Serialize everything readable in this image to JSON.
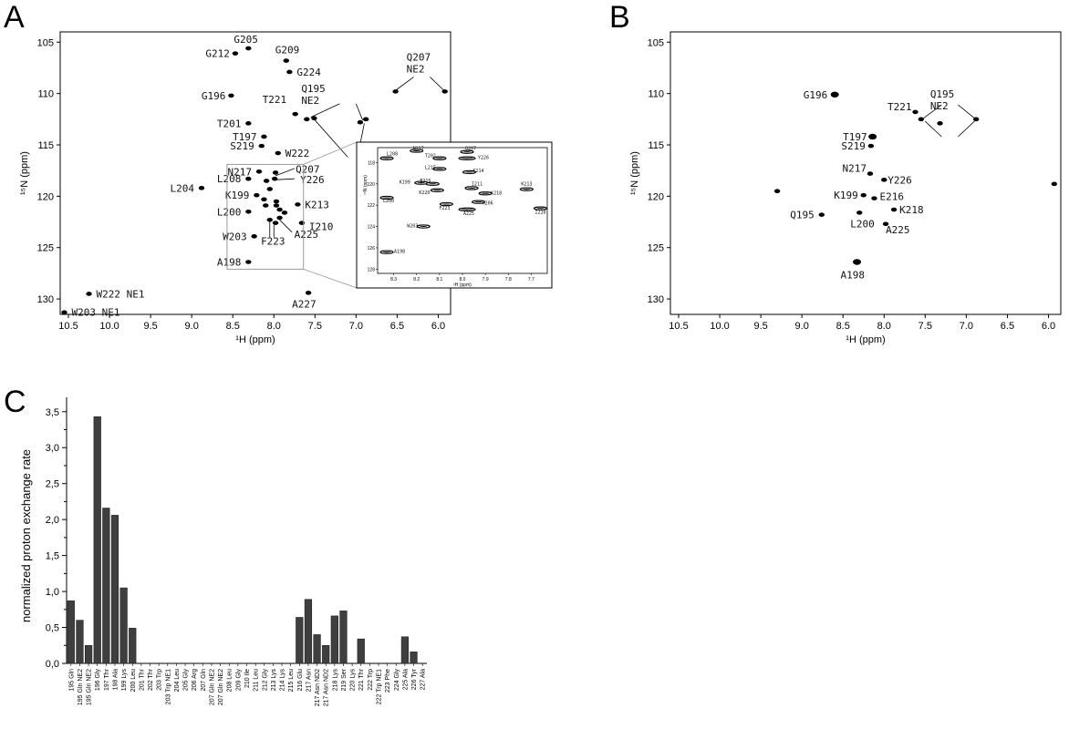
{
  "chart_data": [
    {
      "panel": "A",
      "type": "scatter",
      "xlabel": "¹H (ppm)",
      "ylabel": "¹⁵N (ppm)",
      "xlim": [
        10.6,
        5.85
      ],
      "ylim": [
        104,
        131.5
      ],
      "xticks": [
        10.5,
        10.0,
        9.5,
        9.0,
        8.5,
        8.0,
        7.5,
        7.0,
        6.5,
        6.0
      ],
      "xtick_labels": [
        "10.5",
        "10.0",
        "9.5",
        "9.0",
        "8.5",
        "8.0",
        "7.5",
        "7.0",
        "6.5",
        "6.0"
      ],
      "yticks": [
        105,
        110,
        115,
        120,
        125,
        130
      ],
      "ytick_labels": [
        "105",
        "110",
        "115",
        "120",
        "125",
        "130"
      ],
      "points": [
        {
          "x": 8.31,
          "y": 105.6,
          "label": "G205"
        },
        {
          "x": 8.47,
          "y": 106.1,
          "label": "G212"
        },
        {
          "x": 7.85,
          "y": 106.8,
          "label": "G209"
        },
        {
          "x": 7.81,
          "y": 107.9,
          "label": "G224"
        },
        {
          "x": 6.52,
          "y": 109.8,
          "label": "Q207 NE2"
        },
        {
          "x": 5.92,
          "y": 109.8,
          "label": ""
        },
        {
          "x": 8.52,
          "y": 110.2,
          "label": "G196"
        },
        {
          "x": 7.74,
          "y": 112.0,
          "label": "T221"
        },
        {
          "x": 7.6,
          "y": 112.5,
          "label": "Q195 NE2"
        },
        {
          "x": 7.51,
          "y": 112.4,
          "label": ""
        },
        {
          "x": 6.88,
          "y": 112.5,
          "label": ""
        },
        {
          "x": 6.95,
          "y": 112.8,
          "label": ""
        },
        {
          "x": 8.31,
          "y": 112.9,
          "label": "T201"
        },
        {
          "x": 8.12,
          "y": 114.2,
          "label": "T197"
        },
        {
          "x": 8.15,
          "y": 115.1,
          "label": "S219"
        },
        {
          "x": 7.95,
          "y": 115.8,
          "label": "W222"
        },
        {
          "x": 8.18,
          "y": 117.6,
          "label": "N217"
        },
        {
          "x": 7.98,
          "y": 117.7,
          "label": "Q207"
        },
        {
          "x": 7.99,
          "y": 118.3,
          "label": "Y226"
        },
        {
          "x": 8.31,
          "y": 118.3,
          "label": "L208"
        },
        {
          "x": 8.09,
          "y": 118.5,
          "label": ""
        },
        {
          "x": 8.05,
          "y": 119.3,
          "label": ""
        },
        {
          "x": 8.21,
          "y": 119.9,
          "label": "K199"
        },
        {
          "x": 8.12,
          "y": 120.3,
          "label": ""
        },
        {
          "x": 7.97,
          "y": 120.5,
          "label": ""
        },
        {
          "x": 8.88,
          "y": 119.2,
          "label": "L204"
        },
        {
          "x": 8.1,
          "y": 120.9,
          "label": ""
        },
        {
          "x": 7.97,
          "y": 120.9,
          "label": ""
        },
        {
          "x": 7.71,
          "y": 120.8,
          "label": "K213"
        },
        {
          "x": 7.93,
          "y": 121.3,
          "label": ""
        },
        {
          "x": 8.31,
          "y": 121.5,
          "label": "L200"
        },
        {
          "x": 7.87,
          "y": 121.6,
          "label": ""
        },
        {
          "x": 7.93,
          "y": 122.1,
          "label": "A225"
        },
        {
          "x": 8.05,
          "y": 122.3,
          "label": ""
        },
        {
          "x": 7.98,
          "y": 122.6,
          "label": "F223"
        },
        {
          "x": 7.66,
          "y": 122.6,
          "label": "I210"
        },
        {
          "x": 8.24,
          "y": 123.9,
          "label": "W203"
        },
        {
          "x": 8.31,
          "y": 126.4,
          "label": "A198"
        },
        {
          "x": 10.25,
          "y": 129.5,
          "label": "W222 NE1"
        },
        {
          "x": 7.58,
          "y": 129.4,
          "label": "A227"
        },
        {
          "x": 10.55,
          "y": 131.3,
          "label": "W203 NE1"
        }
      ],
      "inset": {
        "xticks": [
          8.3,
          8.2,
          8.1,
          8.0,
          7.9,
          7.8,
          7.7
        ],
        "xtick_labels": [
          "8.3",
          "8.2",
          "8.1",
          "8.0",
          "7.9",
          "7.8",
          "7.7"
        ],
        "yticks": [
          118,
          120,
          122,
          124,
          126,
          128
        ],
        "ytick_labels": [
          "118",
          "120",
          "122",
          "124",
          "126",
          "128"
        ],
        "xlabel": "¹H (ppm)",
        "ylabel": "¹⁵N (ppm)",
        "peak_labels": [
          "L208",
          "N217",
          "T202",
          "Q207",
          "Y226",
          "L215",
          "K214",
          "K199",
          "E216",
          "I211",
          "K220",
          "K218",
          "K213",
          "L200",
          "F223",
          "A225",
          "R206",
          "I210",
          "W203",
          "A198"
        ]
      }
    },
    {
      "panel": "B",
      "type": "scatter",
      "xlabel": "¹H (ppm)",
      "ylabel": "¹⁵N (ppm)",
      "xlim": [
        10.6,
        5.85
      ],
      "ylim": [
        104,
        131.5
      ],
      "xticks": [
        10.5,
        10.0,
        9.5,
        9.0,
        8.5,
        8.0,
        7.5,
        7.0,
        6.5,
        6.0
      ],
      "xtick_labels": [
        "10.5",
        "10.0",
        "9.5",
        "9.0",
        "8.5",
        "8.0",
        "7.5",
        "7.0",
        "6.5",
        "6.0"
      ],
      "yticks": [
        105,
        110,
        115,
        120,
        125,
        130
      ],
      "ytick_labels": [
        "105",
        "110",
        "115",
        "120",
        "125",
        "130"
      ],
      "points": [
        {
          "x": 8.6,
          "y": 110.1,
          "label": "G196"
        },
        {
          "x": 7.62,
          "y": 111.8,
          "label": "T221"
        },
        {
          "x": 7.55,
          "y": 112.5,
          "label": "Q195 NE2"
        },
        {
          "x": 7.32,
          "y": 112.9,
          "label": ""
        },
        {
          "x": 6.88,
          "y": 112.5,
          "label": ""
        },
        {
          "x": 8.14,
          "y": 114.2,
          "label": "T197"
        },
        {
          "x": 8.16,
          "y": 115.1,
          "label": "S219"
        },
        {
          "x": 8.17,
          "y": 117.8,
          "label": "N217"
        },
        {
          "x": 8.0,
          "y": 118.4,
          "label": "Y226"
        },
        {
          "x": 8.25,
          "y": 119.9,
          "label": "K199"
        },
        {
          "x": 8.12,
          "y": 120.2,
          "label": "E216"
        },
        {
          "x": 7.88,
          "y": 121.3,
          "label": "K218"
        },
        {
          "x": 8.3,
          "y": 121.6,
          "label": "L200"
        },
        {
          "x": 8.76,
          "y": 121.8,
          "label": "Q195"
        },
        {
          "x": 7.98,
          "y": 122.7,
          "label": "A225"
        },
        {
          "x": 8.33,
          "y": 126.4,
          "label": "A198"
        },
        {
          "x": 9.3,
          "y": 119.5,
          "label": ""
        },
        {
          "x": 5.93,
          "y": 118.8,
          "label": ""
        }
      ]
    },
    {
      "panel": "C",
      "type": "bar",
      "ylabel": "normalized proton exchange rate",
      "ylim": [
        0,
        3.7
      ],
      "yticks": [
        0,
        0.5,
        1.0,
        1.5,
        2.0,
        2.5,
        3.0,
        3.5
      ],
      "ytick_labels": [
        "0,0",
        "0,5",
        "1,0",
        "1,5",
        "2,0",
        "2,5",
        "3,0",
        "3,5"
      ],
      "categories": [
        "195 Gln",
        "195 Gln NE2",
        "195 Gln NE2",
        "196 Gly",
        "197 Thr",
        "198 Ala",
        "199 Lys",
        "200 Leu",
        "201 Thr",
        "202 Thr",
        "203 Trp",
        "203 Trp NE1",
        "204 Leu",
        "205 Gly",
        "206 Arg",
        "207 Gln",
        "207 Gln NE2",
        "207 Gln NE2",
        "208 Leu",
        "209 Gly",
        "210 Ile",
        "211 Leu",
        "212 Gly",
        "213 Lys",
        "214 Lys",
        "215 Leu",
        "216 Glu",
        "217 Asn",
        "217 Asn ND2",
        "217 Asn ND2",
        "218 Lys",
        "219 Ser",
        "220 Lys",
        "221 Thr",
        "222 Trp",
        "222 Trp NE1",
        "223 Phe",
        "224 Gly",
        "225 Ala",
        "226 Tyr",
        "227 Ala"
      ],
      "values": [
        0.87,
        0.6,
        0.25,
        3.43,
        2.16,
        2.06,
        1.05,
        0.49,
        0,
        0,
        0,
        0,
        0,
        0,
        0,
        0,
        0,
        0,
        0,
        0,
        0,
        0,
        0,
        0,
        0,
        0,
        0.64,
        0.89,
        0.4,
        0.25,
        0.66,
        0.73,
        0,
        0.34,
        0,
        0,
        0,
        0,
        0.37,
        0.16,
        0
      ]
    }
  ],
  "labels": {
    "panel_a": "A",
    "panel_b": "B",
    "panel_c": "C"
  },
  "colors": {
    "bar": "#3f3f3f",
    "peak": "#000000",
    "inset_box": "#9a9a9a"
  }
}
